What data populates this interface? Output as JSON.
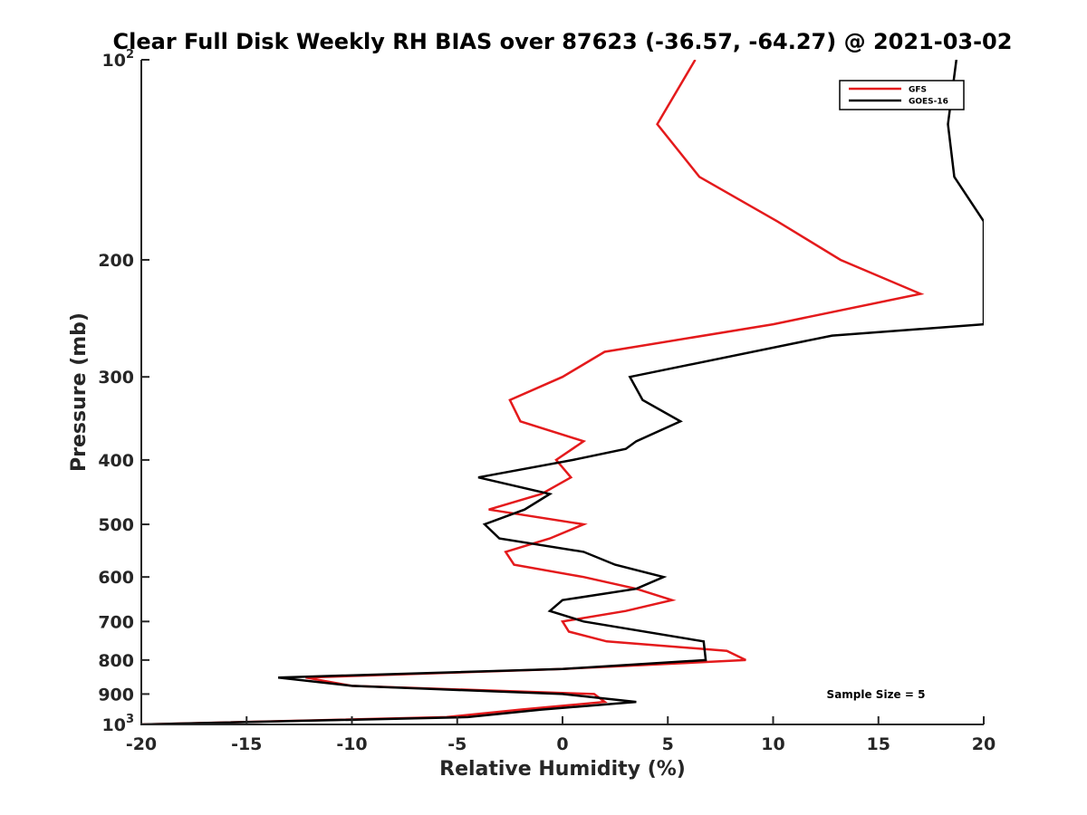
{
  "chart_data": {
    "type": "line",
    "title": "Clear Full Disk Weekly RH BIAS over 87623 (-36.57, -64.27) @ 2021-03-02",
    "xlabel": "Relative Humidity (%)",
    "ylabel": "Pressure (mb)",
    "xlim": [
      -20,
      20
    ],
    "ylim": [
      100,
      1000
    ],
    "y_scale": "log",
    "y_reversed": true,
    "grid": false,
    "legend_position": "top-right",
    "x_ticks": [
      -20,
      -15,
      -10,
      -5,
      0,
      5,
      10,
      15,
      20
    ],
    "x_tick_labels": [
      "-20",
      "-15",
      "-10",
      "-5",
      "0",
      "5",
      "10",
      "15",
      "20"
    ],
    "y_ticks": [
      100,
      200,
      300,
      400,
      500,
      600,
      700,
      800,
      900,
      1000
    ],
    "y_tick_labels": [
      {
        "base": "10",
        "sup": "2"
      },
      {
        "base": "200",
        "sup": ""
      },
      {
        "base": "300",
        "sup": ""
      },
      {
        "base": "400",
        "sup": ""
      },
      {
        "base": "500",
        "sup": ""
      },
      {
        "base": "600",
        "sup": ""
      },
      {
        "base": "700",
        "sup": ""
      },
      {
        "base": "800",
        "sup": ""
      },
      {
        "base": "900",
        "sup": ""
      },
      {
        "base": "10",
        "sup": "3"
      }
    ],
    "series": [
      {
        "name": "GFS",
        "color": "#e41a1c",
        "points": [
          [
            6.3,
            100
          ],
          [
            4.5,
            125
          ],
          [
            6.5,
            150
          ],
          [
            10.2,
            175
          ],
          [
            13.2,
            200
          ],
          [
            17.0,
            225
          ],
          [
            10.0,
            250
          ],
          [
            2.0,
            275
          ],
          [
            0.0,
            300
          ],
          [
            -2.5,
            325
          ],
          [
            -2.0,
            350
          ],
          [
            1.0,
            375
          ],
          [
            -0.3,
            400
          ],
          [
            0.4,
            425
          ],
          [
            -1.0,
            450
          ],
          [
            -3.5,
            475
          ],
          [
            1.0,
            500
          ],
          [
            -0.6,
            525
          ],
          [
            -2.7,
            550
          ],
          [
            -2.3,
            575
          ],
          [
            1.0,
            600
          ],
          [
            3.5,
            625
          ],
          [
            5.2,
            650
          ],
          [
            3.0,
            675
          ],
          [
            0.0,
            700
          ],
          [
            0.3,
            725
          ],
          [
            2.1,
            750
          ],
          [
            7.8,
            775
          ],
          [
            8.7,
            800
          ],
          [
            0.0,
            825
          ],
          [
            -12.2,
            850
          ],
          [
            -10.0,
            875
          ],
          [
            1.5,
            900
          ],
          [
            2.0,
            925
          ],
          [
            -2.0,
            950
          ],
          [
            -5.5,
            975
          ],
          [
            -20.0,
            1000
          ]
        ]
      },
      {
        "name": "GOES-16",
        "color": "#000000",
        "points": [
          [
            18.7,
            100
          ],
          [
            18.3,
            125
          ],
          [
            18.6,
            150
          ],
          [
            20.0,
            175
          ],
          [
            20.0,
            250
          ],
          [
            12.8,
            260
          ],
          [
            3.2,
            300
          ],
          [
            3.8,
            325
          ],
          [
            5.6,
            350
          ],
          [
            3.5,
            375
          ],
          [
            3.0,
            385
          ],
          [
            0.5,
            400
          ],
          [
            -4.0,
            425
          ],
          [
            -0.6,
            450
          ],
          [
            -1.8,
            475
          ],
          [
            -3.7,
            500
          ],
          [
            -3.0,
            525
          ],
          [
            1.0,
            550
          ],
          [
            2.5,
            575
          ],
          [
            4.8,
            600
          ],
          [
            3.5,
            625
          ],
          [
            0.0,
            650
          ],
          [
            -0.6,
            675
          ],
          [
            1.0,
            700
          ],
          [
            6.7,
            750
          ],
          [
            6.8,
            800
          ],
          [
            0.0,
            825
          ],
          [
            -13.5,
            850
          ],
          [
            -10.0,
            875
          ],
          [
            0.0,
            900
          ],
          [
            3.5,
            925
          ],
          [
            -1.0,
            950
          ],
          [
            -4.5,
            975
          ],
          [
            -20.0,
            1000
          ]
        ]
      }
    ],
    "legend": [
      {
        "label": "GFS",
        "color": "#e41a1c"
      },
      {
        "label": "GOES-16",
        "color": "#000000"
      }
    ],
    "annotation": "Sample Size = 5"
  }
}
